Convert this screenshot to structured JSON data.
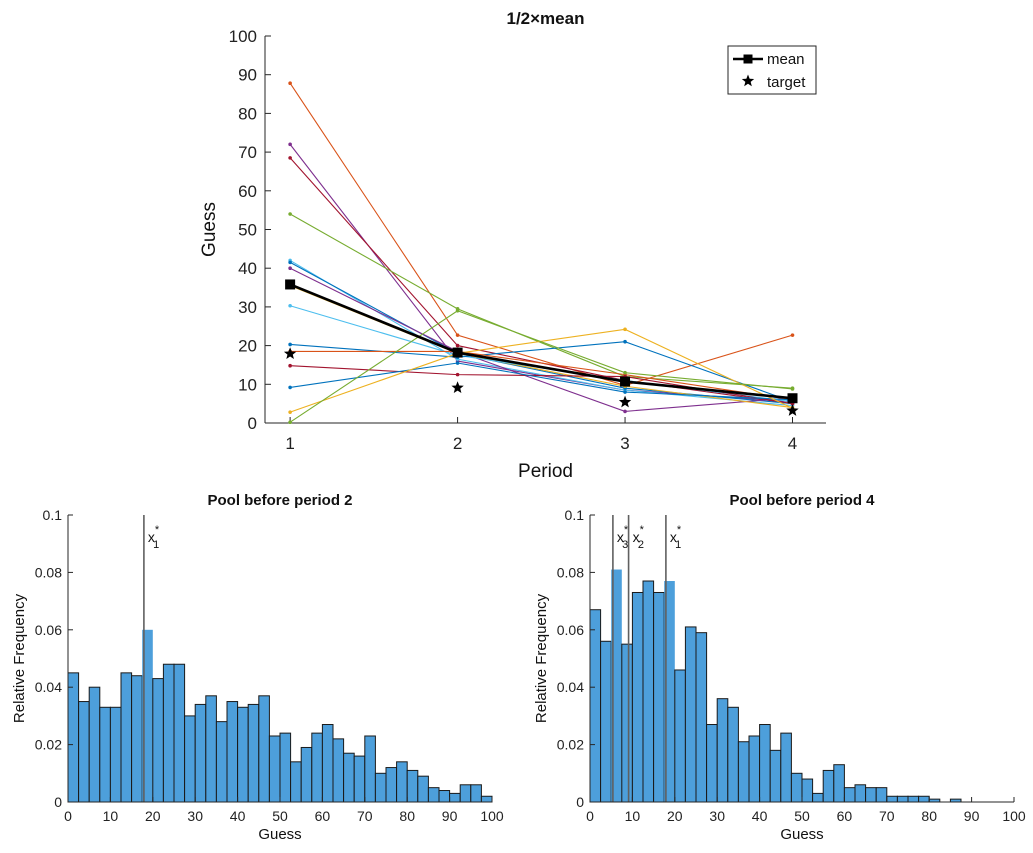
{
  "chart_data": [
    {
      "type": "line",
      "title": "1/2×mean",
      "xlabel": "Period",
      "ylabel": "Guess",
      "x": [
        1,
        2,
        3,
        4
      ],
      "x_ticks": [
        "1",
        "2",
        "3",
        "4"
      ],
      "y_ticks": [
        "0",
        "10",
        "20",
        "30",
        "40",
        "50",
        "60",
        "70",
        "80",
        "90",
        "100"
      ],
      "xlim": [
        0.85,
        4.2
      ],
      "ylim": [
        0,
        100
      ],
      "legend": {
        "placement": "top-right",
        "entries": [
          "mean",
          "target"
        ]
      },
      "series": [
        {
          "name": "mean",
          "values": [
            35.8,
            18.2,
            10.7,
            6.4
          ],
          "color": "#000000"
        },
        {
          "name": "target",
          "values": [
            17.9,
            9.1,
            5.4,
            3.2
          ],
          "color": "#000000"
        }
      ],
      "player_series": [
        {
          "values": [
            87.8,
            22.7,
            9.7,
            22.7
          ],
          "color": "#D95319"
        },
        {
          "values": [
            72.0,
            16.0,
            8.5,
            5.5
          ],
          "color": "#7E2F8E"
        },
        {
          "values": [
            68.5,
            20.0,
            11.0,
            5.0
          ],
          "color": "#A2142F"
        },
        {
          "values": [
            54.0,
            29.5,
            12.0,
            9.0
          ],
          "color": "#77AC30"
        },
        {
          "values": [
            42.0,
            16.5,
            8.5,
            4.5
          ],
          "color": "#4DBEEE"
        },
        {
          "values": [
            41.5,
            18.0,
            9.0,
            5.0
          ],
          "color": "#0072BD"
        },
        {
          "values": [
            40.0,
            18.5,
            3.0,
            6.5
          ],
          "color": "#7E2F8E"
        },
        {
          "values": [
            35.5,
            18.0,
            9.5,
            4.0
          ],
          "color": "#EDB120"
        },
        {
          "values": [
            30.3,
            17.5,
            11.0,
            5.5
          ],
          "color": "#4DBEEE"
        },
        {
          "values": [
            20.3,
            17.0,
            21.0,
            5.5
          ],
          "color": "#0072BD"
        },
        {
          "values": [
            18.5,
            18.5,
            12.5,
            6.0
          ],
          "color": "#D95319"
        },
        {
          "values": [
            14.8,
            12.5,
            12.0,
            5.0
          ],
          "color": "#A2142F"
        },
        {
          "values": [
            9.2,
            15.5,
            8.0,
            6.0
          ],
          "color": "#0072BD"
        },
        {
          "values": [
            2.8,
            18.0,
            24.2,
            3.8
          ],
          "color": "#EDB120"
        },
        {
          "values": [
            0.2,
            29.0,
            13.0,
            8.8
          ],
          "color": "#77AC30"
        }
      ]
    },
    {
      "type": "bar",
      "title": "Pool before period 2",
      "xlabel": "Guess",
      "ylabel": "Relative Frequency",
      "xlim": [
        0,
        100
      ],
      "ylim": [
        0,
        0.1
      ],
      "x_ticks": [
        "0",
        "10",
        "20",
        "30",
        "40",
        "50",
        "60",
        "70",
        "80",
        "90",
        "100"
      ],
      "y_ticks": [
        "0",
        "0.02",
        "0.04",
        "0.06",
        "0.08",
        "0.1"
      ],
      "bin_width": 2.5,
      "values": [
        0.045,
        0.035,
        0.04,
        0.033,
        0.033,
        0.045,
        0.044,
        0.06,
        0.043,
        0.048,
        0.048,
        0.03,
        0.034,
        0.037,
        0.028,
        0.035,
        0.033,
        0.034,
        0.037,
        0.023,
        0.024,
        0.014,
        0.019,
        0.024,
        0.027,
        0.022,
        0.017,
        0.016,
        0.023,
        0.01,
        0.012,
        0.014,
        0.011,
        0.009,
        0.005,
        0.004,
        0.003,
        0.006,
        0.006,
        0.002
      ],
      "highlight_bins": [
        7
      ],
      "annotations": [
        {
          "label": "x",
          "sup": "*",
          "sub": "1",
          "x": 17.9
        }
      ]
    },
    {
      "type": "bar",
      "title": "Pool before period 4",
      "xlabel": "Guess",
      "ylabel": "Relative Frequency",
      "xlim": [
        0,
        100
      ],
      "ylim": [
        0,
        0.1
      ],
      "x_ticks": [
        "0",
        "10",
        "20",
        "30",
        "40",
        "50",
        "60",
        "70",
        "80",
        "90",
        "100"
      ],
      "y_ticks": [
        "0",
        "0.02",
        "0.04",
        "0.06",
        "0.08",
        "0.1"
      ],
      "bin_width": 2.5,
      "values": [
        0.067,
        0.056,
        0.081,
        0.055,
        0.073,
        0.077,
        0.073,
        0.077,
        0.046,
        0.061,
        0.059,
        0.027,
        0.036,
        0.033,
        0.021,
        0.023,
        0.027,
        0.018,
        0.024,
        0.01,
        0.008,
        0.003,
        0.011,
        0.013,
        0.005,
        0.006,
        0.005,
        0.005,
        0.002,
        0.002,
        0.002,
        0.002,
        0.001,
        0.0,
        0.001,
        0.0,
        0.0,
        0.0,
        0.0,
        0.0
      ],
      "highlight_bins": [
        2,
        7
      ],
      "annotations": [
        {
          "label": "x",
          "sup": "*",
          "sub": "3",
          "x": 5.4
        },
        {
          "label": "x",
          "sup": "*",
          "sub": "2",
          "x": 9.1
        },
        {
          "label": "x",
          "sup": "*",
          "sub": "1",
          "x": 17.9
        }
      ]
    }
  ]
}
